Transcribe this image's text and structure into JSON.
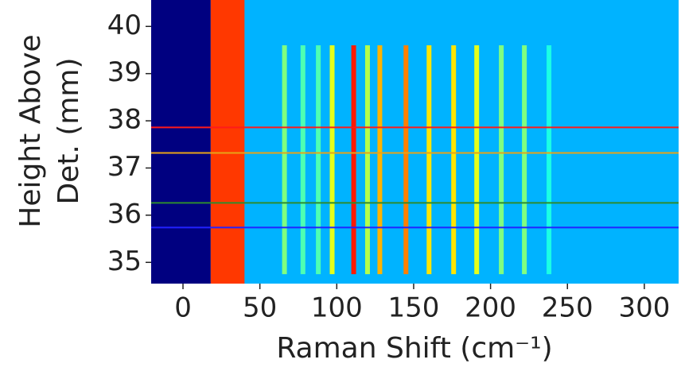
{
  "chart_data": {
    "type": "heatmap",
    "colormap": "jet",
    "xlabel": "Raman Shift (cm⁻¹)",
    "ylabel": [
      "Height Above",
      "Det. (mm)"
    ],
    "xlim": [
      -20.7,
      322.3
    ],
    "ylim": [
      34.55,
      40.56
    ],
    "xticks": [
      0,
      50,
      100,
      150,
      200,
      250,
      300
    ],
    "yticks": [
      35,
      36,
      37,
      38,
      39,
      40
    ],
    "background": 0.3,
    "signal_start": 18,
    "edge": {
      "from": 18,
      "to": 40,
      "intensity": 0.82
    },
    "peak_span": [
      34.75,
      39.6
    ],
    "peaks": [
      {
        "x": 66,
        "intensity": 0.5
      },
      {
        "x": 78,
        "intensity": 0.45
      },
      {
        "x": 88,
        "intensity": 0.45
      },
      {
        "x": 97,
        "intensity": 0.6
      },
      {
        "x": 111,
        "intensity": 0.85
      },
      {
        "x": 120,
        "intensity": 0.55
      },
      {
        "x": 128,
        "intensity": 0.7
      },
      {
        "x": 145,
        "intensity": 0.75
      },
      {
        "x": 160,
        "intensity": 0.65
      },
      {
        "x": 176,
        "intensity": 0.65
      },
      {
        "x": 191,
        "intensity": 0.6
      },
      {
        "x": 207,
        "intensity": 0.5
      },
      {
        "x": 222,
        "intensity": 0.5
      },
      {
        "x": 238,
        "intensity": 0.4
      }
    ],
    "hlines": [
      {
        "y": 37.86,
        "color": "#ff1a1a"
      },
      {
        "y": 37.32,
        "color": "#e8a317"
      },
      {
        "y": 36.26,
        "color": "#2e8b2e"
      },
      {
        "y": 35.74,
        "color": "#2222ff"
      }
    ]
  }
}
